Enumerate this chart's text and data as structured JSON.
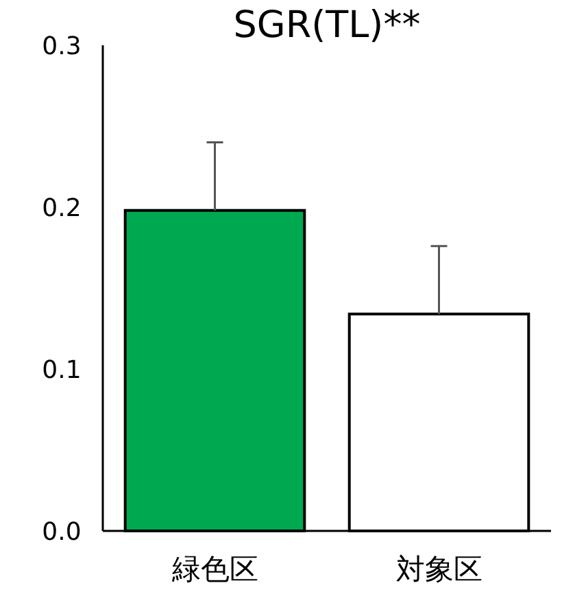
{
  "chart_data": {
    "type": "bar",
    "title": "SGR(TL)**",
    "categories": [
      "緑色区",
      "対象区"
    ],
    "values": [
      0.198,
      0.134
    ],
    "colors": [
      "#00a84f",
      "#ffffff"
    ],
    "errors": [
      [
        0.198,
        0.24
      ],
      [
        0.134,
        0.176
      ]
    ],
    "ylim": [
      0,
      0.3
    ],
    "yticks": [
      {
        "value": 0,
        "label": "0.0"
      },
      {
        "value": 0.1,
        "label": "0.1"
      },
      {
        "value": 0.2,
        "label": "0.2"
      },
      {
        "value": 0.3,
        "label": "0.3"
      }
    ],
    "grid": false
  }
}
